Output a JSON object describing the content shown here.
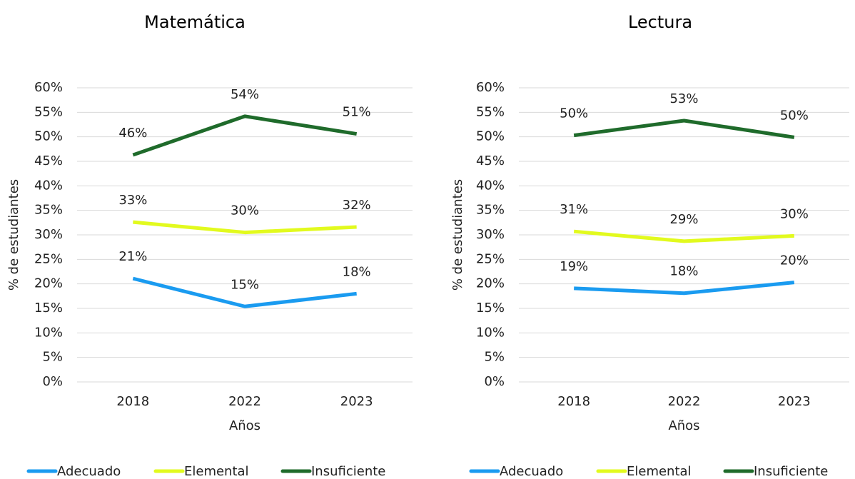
{
  "chart_data": [
    {
      "type": "line",
      "title": "Matemática",
      "y_label": "% de estudiantes",
      "x_label": "Años",
      "categories": [
        "2018",
        "2022",
        "2023"
      ],
      "ylim": [
        0,
        60
      ],
      "yticks": [
        {
          "value": 0,
          "label": "0%"
        },
        {
          "value": 5,
          "label": "5%"
        },
        {
          "value": 10,
          "label": "10%"
        },
        {
          "value": 15,
          "label": "15%"
        },
        {
          "value": 20,
          "label": "20%"
        },
        {
          "value": 25,
          "label": "25%"
        },
        {
          "value": 30,
          "label": "30%"
        },
        {
          "value": 35,
          "label": "35%"
        },
        {
          "value": 40,
          "label": "40%"
        },
        {
          "value": 45,
          "label": "45%"
        },
        {
          "value": 50,
          "label": "50%"
        },
        {
          "value": 55,
          "label": "55%"
        },
        {
          "value": 60,
          "label": "60%"
        }
      ],
      "grid": true,
      "legend": "bottom",
      "series": [
        {
          "name": "Adecuado",
          "color": "#1a9bf0",
          "values": [
            21.1,
            15.4,
            18.0
          ],
          "value_labels": [
            "21%",
            "15%",
            "18%"
          ]
        },
        {
          "name": "Elemental",
          "color": "#e2fa1e",
          "values": [
            32.6,
            30.5,
            31.6
          ],
          "value_labels": [
            "33%",
            "30%",
            "32%"
          ]
        },
        {
          "name": "Insuficiente",
          "color": "#1f6b2b",
          "values": [
            46.3,
            54.2,
            50.6
          ],
          "value_labels": [
            "46%",
            "54%",
            "51%"
          ]
        }
      ]
    },
    {
      "type": "line",
      "title": "Lectura",
      "y_label": "% de estudiantes",
      "x_label": "Años",
      "categories": [
        "2018",
        "2022",
        "2023"
      ],
      "ylim": [
        0,
        60
      ],
      "yticks": [
        {
          "value": 0,
          "label": "0%"
        },
        {
          "value": 5,
          "label": "5%"
        },
        {
          "value": 10,
          "label": "10%"
        },
        {
          "value": 15,
          "label": "15%"
        },
        {
          "value": 20,
          "label": "20%"
        },
        {
          "value": 25,
          "label": "25%"
        },
        {
          "value": 30,
          "label": "30%"
        },
        {
          "value": 35,
          "label": "35%"
        },
        {
          "value": 40,
          "label": "40%"
        },
        {
          "value": 45,
          "label": "45%"
        },
        {
          "value": 50,
          "label": "50%"
        },
        {
          "value": 55,
          "label": "55%"
        },
        {
          "value": 60,
          "label": "60%"
        }
      ],
      "grid": true,
      "legend": "bottom",
      "series": [
        {
          "name": "Adecuado",
          "color": "#1a9bf0",
          "values": [
            19.1,
            18.1,
            20.3
          ],
          "value_labels": [
            "19%",
            "18%",
            "20%"
          ]
        },
        {
          "name": "Elemental",
          "color": "#e2fa1e",
          "values": [
            30.7,
            28.7,
            29.8
          ],
          "value_labels": [
            "31%",
            "29%",
            "30%"
          ]
        },
        {
          "name": "Insuficiente",
          "color": "#1f6b2b",
          "values": [
            50.3,
            53.3,
            49.9
          ],
          "value_labels": [
            "50%",
            "53%",
            "50%"
          ]
        }
      ]
    }
  ]
}
